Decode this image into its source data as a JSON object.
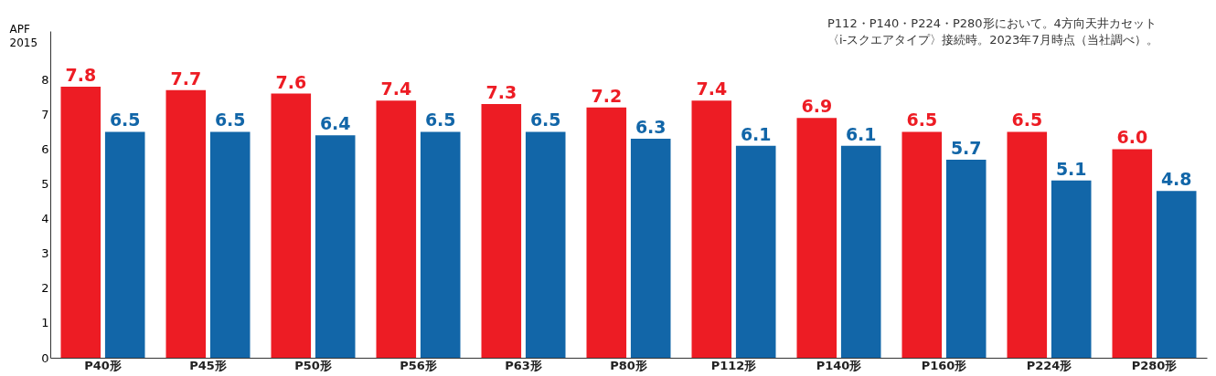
{
  "chart_data": {
    "type": "bar",
    "ylabel": "APF\n2015",
    "categories": [
      "P40形",
      "P45形",
      "P50形",
      "P56形",
      "P63形",
      "P80形",
      "P112形",
      "P140形",
      "P160形",
      "P224形",
      "P280形"
    ],
    "series": [
      {
        "color": "#ed1c24",
        "values": [
          7.8,
          7.7,
          7.6,
          7.4,
          7.3,
          7.2,
          7.4,
          6.9,
          6.5,
          6.5,
          6.0
        ],
        "value_labels": [
          "7.8",
          "7.7",
          "7.6",
          "7.4",
          "7.3",
          "7.2",
          "7.4",
          "6.9",
          "6.5",
          "6.5",
          "6.0"
        ]
      },
      {
        "color": "#1266a8",
        "values": [
          6.5,
          6.5,
          6.4,
          6.5,
          6.5,
          6.3,
          6.1,
          6.1,
          5.7,
          5.1,
          4.8
        ],
        "value_labels": [
          "6.5",
          "6.5",
          "6.4",
          "6.5",
          "6.5",
          "6.3",
          "6.1",
          "6.1",
          "5.7",
          "5.1",
          "4.8"
        ]
      }
    ],
    "ylim": [
      0,
      9.4
    ],
    "yticks": [
      0,
      1,
      2,
      3,
      4,
      5,
      6,
      7,
      8
    ],
    "grid": false,
    "annotations": [
      "P112・P140・P224・P280形において。4方向天井カセット",
      "〈i-スクエアタイプ〉接続時。2023年7月時点（当社調べ）。"
    ]
  }
}
